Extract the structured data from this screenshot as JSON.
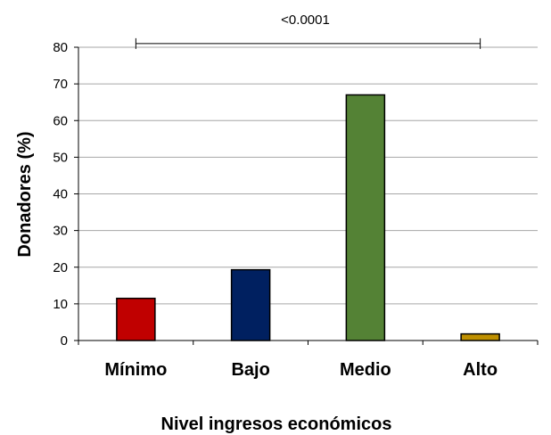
{
  "chart_data": {
    "type": "bar",
    "title": "",
    "xlabel": "Nivel ingresos económicos",
    "ylabel": "Donadores (%)",
    "ylim": [
      0,
      80
    ],
    "yticks": [
      0,
      10,
      20,
      30,
      40,
      50,
      60,
      70,
      80
    ],
    "grid": true,
    "legend": "none",
    "categories": [
      "Mínimo",
      "Bajo",
      "Medio",
      "Alto"
    ],
    "values": [
      11.5,
      19.3,
      67.0,
      1.8
    ],
    "colors": [
      "#c00000",
      "#002060",
      "#548235",
      "#bf9000"
    ],
    "annotation": {
      "text": "<0.0001",
      "from_category": 0,
      "to_category": 3,
      "y": 81
    }
  }
}
